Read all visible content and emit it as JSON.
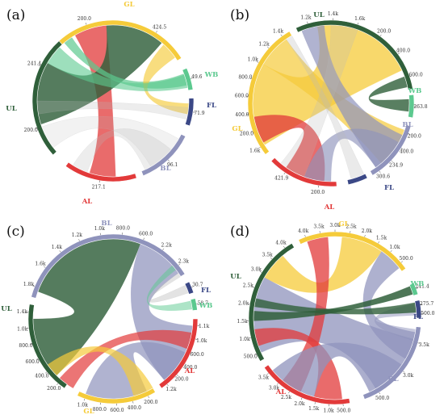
{
  "colors": {
    "GL": "#f5cb3a",
    "UL": "#2f5f3a",
    "WB": "#5cc98f",
    "FL": "#3b4886",
    "BL": "#8f93bc",
    "AL": "#e23a3a"
  },
  "chart_data": [
    {
      "type": "chord",
      "label": "(a)",
      "groups": [
        {
          "name": "GL",
          "ticks": [
            "200.0"
          ],
          "edge_ticks": [
            "424.5"
          ]
        },
        {
          "name": "WB",
          "ticks": [
            "49.6"
          ]
        },
        {
          "name": "FL",
          "ticks": [
            "71.9"
          ]
        },
        {
          "name": "BL",
          "ticks": [
            "96.1"
          ]
        },
        {
          "name": "AL",
          "ticks": [
            "217.1"
          ]
        },
        {
          "name": "UL",
          "ticks": [
            "200.0",
            "241.4"
          ]
        }
      ],
      "ribbons": [
        [
          "GL",
          "AL"
        ],
        [
          "GL",
          "UL"
        ],
        [
          "GL",
          "WB"
        ],
        [
          "GL",
          "FL"
        ],
        [
          "UL",
          "WB"
        ],
        [
          "UL",
          "BL"
        ],
        [
          "UL",
          "FL"
        ],
        [
          "AL",
          "BL"
        ],
        [
          "AL",
          "UL"
        ]
      ]
    },
    {
      "type": "chord",
      "label": "(b)",
      "groups": [
        {
          "name": "UL",
          "ticks": [
            "1.2k",
            "1.4k",
            "1.6k",
            "200.0",
            "400.0",
            "600.0"
          ]
        },
        {
          "name": "WB",
          "ticks": [
            "263.8"
          ]
        },
        {
          "name": "BL",
          "ticks": [
            "200.0",
            "400.0",
            "234.9",
            "300.6"
          ]
        },
        {
          "name": "FL",
          "ticks": []
        },
        {
          "name": "AL",
          "ticks": [
            "200.0",
            "421.9"
          ]
        },
        {
          "name": "GL",
          "ticks": [
            "1.6k",
            "200.0",
            "400.0",
            "600.0",
            "800.0",
            "1.0k",
            "1.2k",
            "1.4k"
          ]
        }
      ],
      "ribbons": [
        [
          "GL",
          "UL"
        ],
        [
          "GL",
          "BL"
        ],
        [
          "GL",
          "AL"
        ],
        [
          "UL",
          "BL"
        ],
        [
          "UL",
          "AL"
        ],
        [
          "AL",
          "BL"
        ],
        [
          "GL",
          "FL"
        ],
        [
          "UL",
          "WB"
        ]
      ]
    },
    {
      "type": "chord",
      "label": "(c)",
      "groups": [
        {
          "name": "BL",
          "ticks": [
            "1.8k",
            "1.6k",
            "1.4k",
            "1.2k",
            "1.0k",
            "800.0",
            "600.0",
            "2.2k",
            "2.3k"
          ]
        },
        {
          "name": "FL",
          "ticks": [
            "30.7"
          ]
        },
        {
          "name": "WB",
          "ticks": [
            "58.7"
          ]
        },
        {
          "name": "AL",
          "ticks": [
            "1.1k",
            "1.0k",
            "600.0",
            "400.0",
            "200.0",
            "1.2k"
          ]
        },
        {
          "name": "GL",
          "ticks": [
            "200.0",
            "400.0",
            "600.0",
            "800.0",
            "1.0k"
          ]
        },
        {
          "name": "UL",
          "ticks": [
            "200.0",
            "400.0",
            "600.0",
            "800.0",
            "1.0k",
            "1.4k"
          ]
        }
      ],
      "ribbons": [
        [
          "BL",
          "UL"
        ],
        [
          "BL",
          "AL"
        ],
        [
          "AL",
          "UL"
        ],
        [
          "AL",
          "GL"
        ],
        [
          "GL",
          "UL"
        ],
        [
          "BL",
          "FL"
        ],
        [
          "BL",
          "WB"
        ]
      ]
    },
    {
      "type": "chord",
      "label": "(d)",
      "groups": [
        {
          "name": "GL",
          "ticks": [
            "4.0k",
            "3.5k",
            "3.0k",
            "2.5k",
            "2.0k",
            "1.5k",
            "1.0k",
            "500.0"
          ]
        },
        {
          "name": "WB",
          "ticks": [
            "241.4"
          ]
        },
        {
          "name": "FL",
          "ticks": [
            "275.7",
            "500.0"
          ]
        },
        {
          "name": "BL",
          "ticks": [
            "3.5k",
            "3.0k",
            "500.0"
          ]
        },
        {
          "name": "AL",
          "ticks": [
            "500.0",
            "1.0k",
            "1.5k",
            "2.0k",
            "2.5k",
            "3.0k",
            "3.5k"
          ]
        },
        {
          "name": "UL",
          "ticks": [
            "500.0",
            "1.0k",
            "1.5k",
            "2.0k",
            "2.5k",
            "3.0k",
            "3.5k",
            "4.0k"
          ]
        }
      ],
      "ribbons": [
        [
          "UL",
          "BL"
        ],
        [
          "UL",
          "GL"
        ],
        [
          "UL",
          "AL"
        ],
        [
          "GL",
          "BL"
        ],
        [
          "GL",
          "AL"
        ],
        [
          "AL",
          "BL"
        ],
        [
          "BL",
          "FL"
        ],
        [
          "UL",
          "WB"
        ],
        [
          "UL",
          "FL"
        ]
      ]
    }
  ]
}
